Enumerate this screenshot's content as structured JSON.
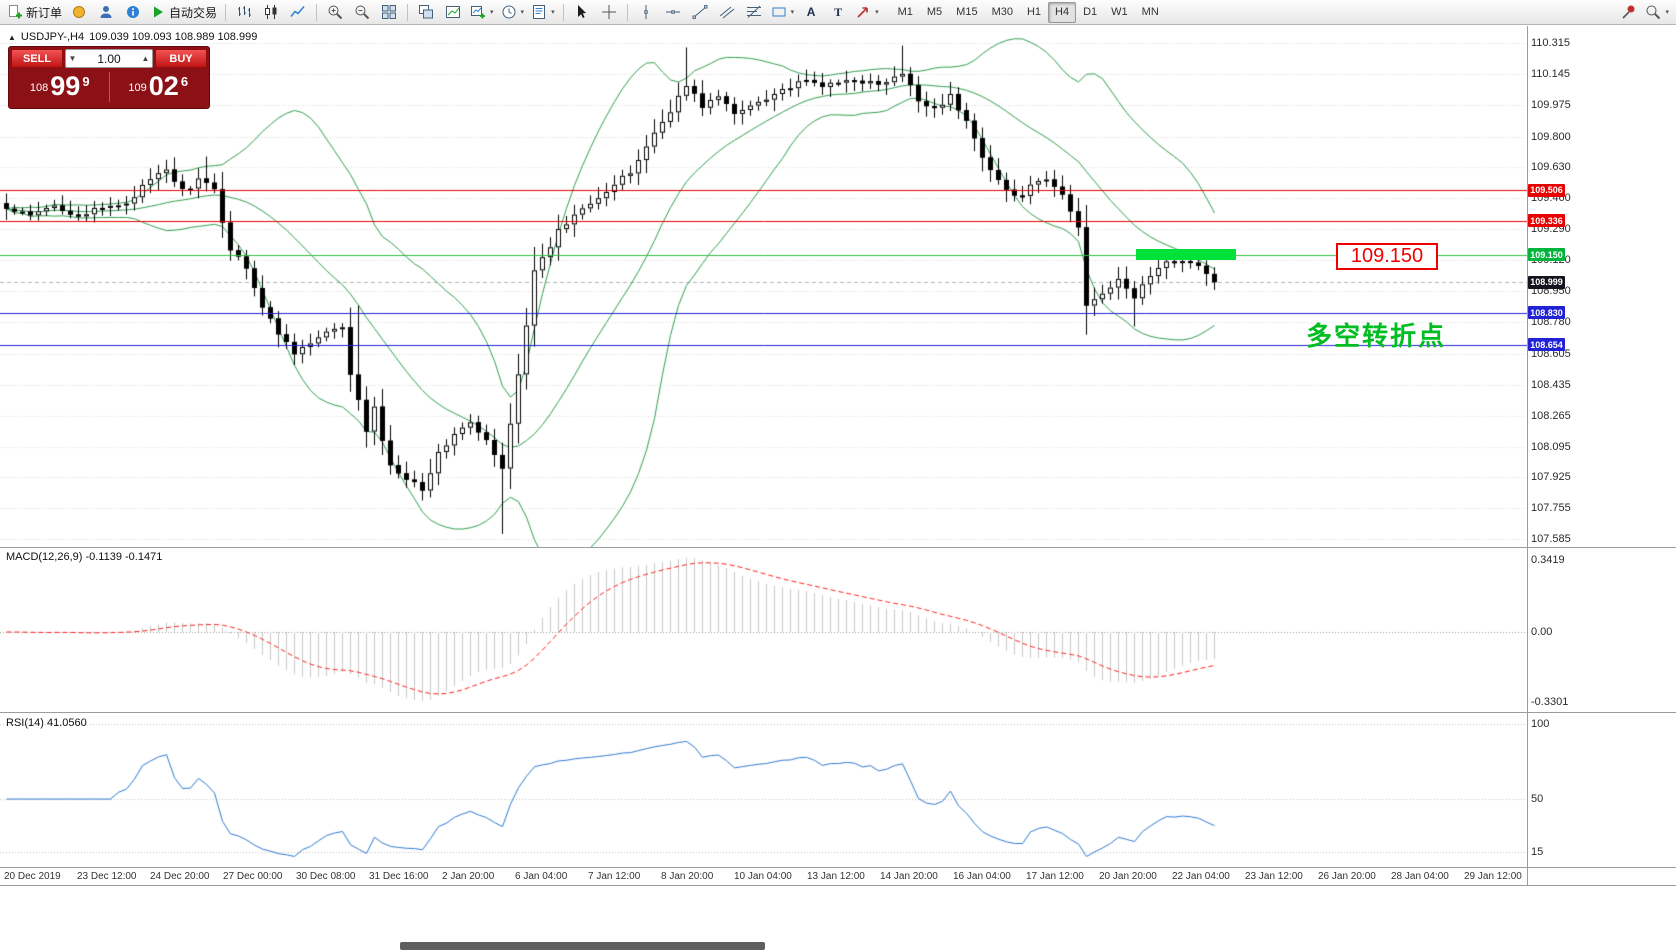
{
  "colors": {
    "bollinger": "#2f9e4f",
    "grid": "#dadada",
    "bid_line": "#b5b5b5",
    "candle": "#000000",
    "macd_hist": "#c9c9c9",
    "macd_signal": "#ff1f1f",
    "rsi_line": "#2d79cf",
    "level_red": "#e80000",
    "level_green": "#2fbf3f",
    "level_blue": "#2121d6",
    "badge_green": "#00b43c",
    "badge_bid": "#14141e",
    "highlight": "#00e23a"
  },
  "toolbar": {
    "items": [
      {
        "type": "button",
        "name": "new-order-button",
        "icon": "doc-plus-icon",
        "label": "新订单"
      },
      {
        "type": "icon",
        "name": "gold-button",
        "icon": "gold-icon"
      },
      {
        "type": "icon",
        "name": "profile-button",
        "icon": "profile-icon"
      },
      {
        "type": "icon",
        "name": "info-button",
        "icon": "info-icon"
      },
      {
        "type": "button",
        "name": "auto-trading-button",
        "icon": "play-icon",
        "label": "自动交易"
      },
      {
        "type": "sep"
      },
      {
        "type": "icon",
        "name": "bar-chart-button",
        "icon": "bar-chart-icon"
      },
      {
        "type": "icon",
        "name": "candle-chart-button",
        "icon": "candle-chart-icon"
      },
      {
        "type": "icon",
        "name": "line-chart-button",
        "icon": "line-chart-icon"
      },
      {
        "type": "sep"
      },
      {
        "type": "icon",
        "name": "zoom-in-button",
        "icon": "zoom-in-icon"
      },
      {
        "type": "icon",
        "name": "zoom-out-button",
        "icon": "zoom-out-icon"
      },
      {
        "type": "icon",
        "name": "tile-windows-button",
        "icon": "tile-icon"
      },
      {
        "type": "sep"
      },
      {
        "type": "icon",
        "name": "auto-arrange-button",
        "icon": "arrange-icon"
      },
      {
        "type": "icon",
        "name": "track-chart-button",
        "icon": "track-icon"
      },
      {
        "type": "icon",
        "name": "new-chart-button",
        "icon": "chart-plus-icon",
        "dropdown": true
      },
      {
        "type": "icon",
        "name": "periods-button",
        "icon": "clock-icon",
        "dropdown": true
      },
      {
        "type": "icon",
        "name": "templates-button",
        "icon": "template-icon",
        "dropdown": true
      },
      {
        "type": "sep"
      },
      {
        "type": "icon",
        "name": "cursor-button",
        "icon": "cursor-icon"
      },
      {
        "type": "icon",
        "name": "crosshair-button",
        "icon": "crosshair-icon"
      },
      {
        "type": "sep"
      },
      {
        "type": "icon",
        "name": "vertical-line-button",
        "icon": "vline-icon"
      },
      {
        "type": "icon",
        "name": "horizontal-line-button",
        "icon": "hline-icon"
      },
      {
        "type": "icon",
        "name": "trendline-button",
        "icon": "trendline-icon"
      },
      {
        "type": "icon",
        "name": "channel-button",
        "icon": "channel-icon"
      },
      {
        "type": "icon",
        "name": "fibonacci-button",
        "icon": "fibonacci-icon"
      },
      {
        "type": "icon",
        "name": "shapes-button",
        "icon": "shapes-icon",
        "dropdown": true
      },
      {
        "type": "icon",
        "name": "text-button",
        "icon": "text-icon"
      },
      {
        "type": "icon",
        "name": "label-button",
        "icon": "label-icon"
      },
      {
        "type": "icon",
        "name": "arrows-button",
        "icon": "arrow-icon",
        "dropdown": true
      }
    ],
    "timeframes": [
      "M1",
      "M5",
      "M15",
      "M30",
      "H1",
      "H4",
      "D1",
      "W1",
      "MN"
    ],
    "active_timeframe": "H4",
    "right_icons": [
      {
        "name": "pin-button",
        "icon": "pin-icon"
      },
      {
        "name": "search-button",
        "icon": "search-icon",
        "dropdown": true
      }
    ]
  },
  "chart": {
    "symbol_header": "USDJPY-,H4",
    "ohlc": "109.039 109.093 108.989 108.999",
    "price_scale_labels": [
      "110.315",
      "110.145",
      "109.975",
      "109.800",
      "109.630",
      "109.460",
      "109.290",
      "109.120",
      "108.950",
      "108.780",
      "108.605",
      "108.435",
      "108.265",
      "108.095",
      "107.925",
      "107.755",
      "107.585"
    ],
    "levels": [
      {
        "text": "109.506",
        "value": 109.506,
        "color": "#e80000",
        "badge": "#e80000"
      },
      {
        "text": "109.336",
        "value": 109.336,
        "color": "#e80000",
        "badge": "#e80000"
      },
      {
        "text": "109.150",
        "value": 109.15,
        "color": "#2fbf3f",
        "badge": "#00b43c"
      },
      {
        "text": "108.830",
        "value": 108.83,
        "color": "#2121d6",
        "badge": "#2121d6"
      },
      {
        "text": "108.654",
        "value": 108.654,
        "color": "#2121d6",
        "badge": "#2121d6"
      }
    ],
    "bid": {
      "text": "108.999",
      "value": 108.999
    },
    "annotations": {
      "price_label": "109.150",
      "turning_point": "多空转折点"
    },
    "indicators": {
      "bollinger": {
        "period": 20,
        "deviation": 2
      },
      "macd": {
        "label": "MACD(12,26,9) -0.1139 -0.1471",
        "scale_top": "0.3419",
        "scale_zero": "0.00",
        "scale_bottom": "-0.3301",
        "top_value": 0.3419,
        "bottom_value": -0.3301
      },
      "rsi": {
        "label": "RSI(14) 41.0560",
        "scale": [
          {
            "text": "100",
            "value": 100
          },
          {
            "text": "50",
            "value": 50
          },
          {
            "text": "15",
            "value": 15
          }
        ]
      }
    },
    "series": {
      "count": 152,
      "anchors": [
        [
          0,
          109.4
        ],
        [
          3,
          109.36
        ],
        [
          6,
          109.42
        ],
        [
          9,
          109.37
        ],
        [
          12,
          109.4
        ],
        [
          15,
          109.44
        ],
        [
          17,
          109.52
        ],
        [
          20,
          109.62
        ],
        [
          22,
          109.5
        ],
        [
          24,
          109.56
        ],
        [
          26,
          109.5
        ],
        [
          28,
          109.18
        ],
        [
          30,
          109.09
        ],
        [
          32,
          108.86
        ],
        [
          34,
          108.72
        ],
        [
          36,
          108.62
        ],
        [
          38,
          108.66
        ],
        [
          40,
          108.72
        ],
        [
          42,
          108.74
        ],
        [
          43,
          108.5
        ],
        [
          45,
          108.18
        ],
        [
          46,
          108.3
        ],
        [
          48,
          107.98
        ],
        [
          50,
          107.93
        ],
        [
          52,
          107.87
        ],
        [
          54,
          108.05
        ],
        [
          56,
          108.17
        ],
        [
          58,
          108.22
        ],
        [
          60,
          108.12
        ],
        [
          62,
          107.97
        ],
        [
          64,
          108.5
        ],
        [
          66,
          109.05
        ],
        [
          67,
          109.12
        ],
        [
          69,
          109.28
        ],
        [
          72,
          109.42
        ],
        [
          75,
          109.5
        ],
        [
          78,
          109.6
        ],
        [
          80,
          109.75
        ],
        [
          83,
          109.95
        ],
        [
          85,
          110.08
        ],
        [
          87,
          109.97
        ],
        [
          89,
          110.02
        ],
        [
          91,
          109.92
        ],
        [
          94,
          110.0
        ],
        [
          97,
          110.06
        ],
        [
          100,
          110.1
        ],
        [
          103,
          110.08
        ],
        [
          106,
          110.12
        ],
        [
          109,
          110.08
        ],
        [
          112,
          110.14
        ],
        [
          114,
          110.0
        ],
        [
          116,
          109.96
        ],
        [
          118,
          110.02
        ],
        [
          120,
          109.88
        ],
        [
          122,
          109.7
        ],
        [
          124,
          109.56
        ],
        [
          126,
          109.46
        ],
        [
          128,
          109.52
        ],
        [
          130,
          109.56
        ],
        [
          132,
          109.48
        ],
        [
          134,
          109.3
        ],
        [
          135,
          108.88
        ],
        [
          137,
          108.95
        ],
        [
          139,
          109.0
        ],
        [
          141,
          108.92
        ],
        [
          143,
          109.04
        ],
        [
          145,
          109.1
        ],
        [
          147,
          109.13
        ],
        [
          149,
          109.08
        ],
        [
          151,
          108.999
        ]
      ],
      "spikes": [
        [
          25,
          "high",
          109.69
        ],
        [
          44,
          "high",
          108.87
        ],
        [
          62,
          "low",
          107.615
        ],
        [
          85,
          "high",
          110.29
        ],
        [
          112,
          "high",
          110.3
        ],
        [
          141,
          "low",
          108.755
        ]
      ]
    },
    "time_axis": [
      "20 Dec 2019",
      "23 Dec 12:00",
      "24 Dec 20:00",
      "27 Dec 00:00",
      "30 Dec 08:00",
      "31 Dec 16:00",
      "2 Jan 20:00",
      "6 Jan 04:00",
      "7 Jan 12:00",
      "8 Jan 20:00",
      "10 Jan 04:00",
      "13 Jan 12:00",
      "14 Jan 20:00",
      "16 Jan 04:00",
      "17 Jan 12:00",
      "20 Jan 20:00",
      "22 Jan 04:00",
      "23 Jan 12:00",
      "26 Jan 20:00",
      "28 Jan 04:00",
      "29 Jan 12:00"
    ]
  },
  "order_panel": {
    "sell_label": "SELL",
    "buy_label": "BUY",
    "volume": "1.00",
    "sell_price": {
      "small": "108",
      "big": "99",
      "sup": "9"
    },
    "buy_price": {
      "small": "109",
      "big": "02",
      "sup": "6"
    }
  }
}
